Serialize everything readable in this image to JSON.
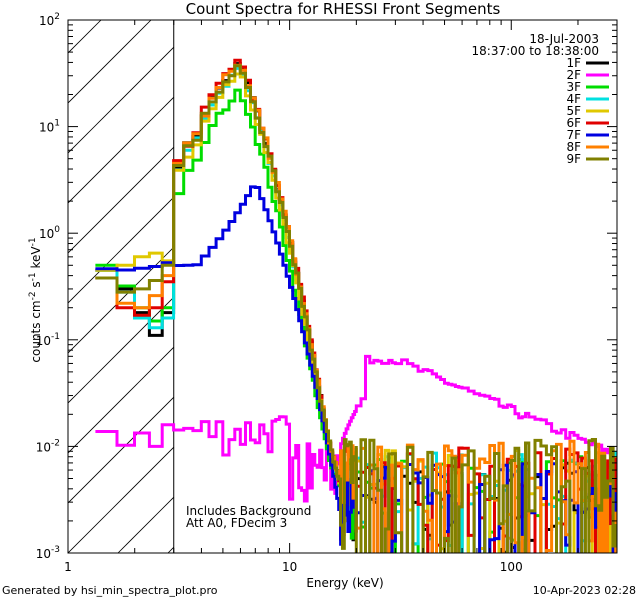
{
  "chart_data": {
    "type": "line",
    "title": "Count Spectra for RHESSI Front Segments",
    "xlabel": "Energy (keV)",
    "ylabel": "counts cm^-2 s^-1 keV^-1",
    "xscale": "log",
    "yscale": "log",
    "xlim": [
      1,
      300
    ],
    "ylim": [
      0.001,
      100
    ],
    "xticks": [
      {
        "value": 1,
        "label": "1"
      },
      {
        "value": 10,
        "label": "10"
      },
      {
        "value": 100,
        "label": "100"
      }
    ],
    "yticks": [
      {
        "value": 0.001,
        "base": "10",
        "exp": "-3"
      },
      {
        "value": 0.01,
        "base": "10",
        "exp": "-2"
      },
      {
        "value": 0.1,
        "base": "10",
        "exp": "-1"
      },
      {
        "value": 1,
        "base": "10",
        "exp": "0"
      },
      {
        "value": 10,
        "base": "10",
        "exp": "1"
      },
      {
        "value": 100,
        "base": "10",
        "exp": "2"
      }
    ],
    "hatched_region": {
      "from_kev": 1.0,
      "to_kev": 3.0
    },
    "date": "18-Jul-2003",
    "time_range": "18:37:00 to 18:38:00",
    "annotation_lines": [
      "Includes Background",
      "Att A0, FDecim 3"
    ],
    "series": [
      {
        "name": "1F",
        "color": "#000000",
        "scale": 0.85,
        "low": [
          0.45,
          0.3,
          0.18,
          0.11,
          0.18,
          0.55
        ],
        "peak": 40
      },
      {
        "name": "2F",
        "color": "#ff00ff",
        "kind": "rear",
        "values": []
      },
      {
        "name": "3F",
        "color": "#00dd00",
        "scale": 0.62,
        "low": [
          0.5,
          0.32,
          0.2,
          0.15,
          0.2,
          0.5
        ],
        "peak": 22
      },
      {
        "name": "4F",
        "color": "#00e0e0",
        "scale": 0.9,
        "low": [
          0.45,
          0.28,
          0.16,
          0.13,
          0.16,
          0.6
        ],
        "peak": 36
      },
      {
        "name": "5F",
        "color": "#e0c800",
        "scale": 1.1,
        "low": [
          0.45,
          0.5,
          0.6,
          0.65,
          0.55,
          1.0
        ],
        "peak": 33
      },
      {
        "name": "6F",
        "color": "#e00000",
        "scale": 1.15,
        "low": [
          0.38,
          0.2,
          0.17,
          0.2,
          0.35,
          0.9
        ],
        "peak": 43
      },
      {
        "name": "7F",
        "color": "#0000e0",
        "kind": "flat",
        "values": []
      },
      {
        "name": "8F",
        "color": "#ff8000",
        "scale": 1.1,
        "low": [
          0.38,
          0.22,
          0.2,
          0.26,
          0.4,
          0.85
        ],
        "peak": 41
      },
      {
        "name": "9F",
        "color": "#808000",
        "scale": 1.2,
        "low": [
          0.38,
          0.28,
          0.3,
          0.36,
          0.5,
          1.05
        ],
        "peak": 38
      }
    ]
  },
  "footer": {
    "left": "Generated by hsi_min_spectra_plot.pro",
    "right": "10-Apr-2023 02:28"
  }
}
